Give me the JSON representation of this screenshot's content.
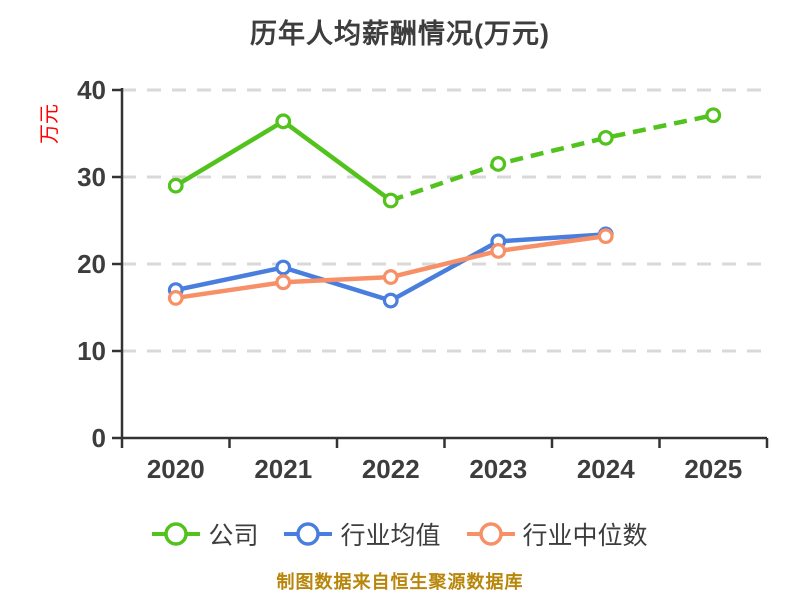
{
  "chart_data": {
    "type": "line",
    "title": "历年人均薪酬情况(万元)",
    "ylabel": "万元",
    "footer": "制图数据来自恒生聚源数据库",
    "categories": [
      "2020",
      "2021",
      "2022",
      "2023",
      "2024",
      "2025"
    ],
    "yticks": [
      0,
      10,
      20,
      30,
      40
    ],
    "ylim": [
      0,
      40
    ],
    "grid": "horizontal-dashed",
    "legend_position": "bottom",
    "series": [
      {
        "name": "公司",
        "color": "#52c21d",
        "values": [
          29.0,
          36.4,
          27.3,
          31.5,
          34.5,
          37.1
        ],
        "solid_until_index": 2,
        "dash_note": "dashed from 2022 onward"
      },
      {
        "name": "行业均值",
        "color": "#4a7ede",
        "values": [
          17.0,
          19.6,
          15.8,
          22.6,
          23.4,
          null
        ],
        "solid_until_index": null,
        "dash_note": ""
      },
      {
        "name": "行业中位数",
        "color": "#f79067",
        "values": [
          16.1,
          17.9,
          18.5,
          21.5,
          23.2,
          null
        ],
        "solid_until_index": null,
        "dash_note": ""
      }
    ]
  },
  "colors": {
    "background": "#ffffff",
    "title_text": "#3d3d3d",
    "tick_label": "#3d3d3d",
    "axis_dark": "#333333",
    "grid_gray": "#d9d9d9",
    "ylabel_red": "#ff0000",
    "footer_gold": "#b8860b"
  }
}
